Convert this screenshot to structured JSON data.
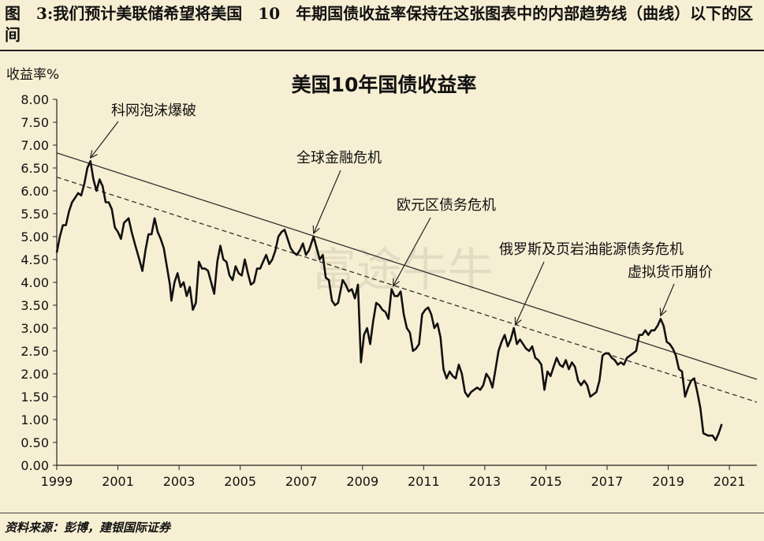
{
  "caption": "图　3:我们预计美联储希望将美国　10　年期国债收益率保持在这张图表中的内部趋势线（曲线）以下的区间",
  "source": "资料来源：彭博，建银国际证券",
  "watermark": "富途牛牛",
  "colors": {
    "background": "#f7efd3",
    "line": "#111111",
    "trend": "#333333"
  },
  "chart_data": {
    "type": "line",
    "title": "美国10年国债收益率",
    "ylabel": "收益率%",
    "xlabel": "",
    "ylim": [
      0,
      8
    ],
    "xlim": [
      1999,
      2021.9
    ],
    "y_ticks": [
      "0.00",
      "0.50",
      "1.00",
      "1.50",
      "2.00",
      "2.50",
      "3.00",
      "3.50",
      "4.00",
      "4.50",
      "5.00",
      "5.50",
      "6.00",
      "6.50",
      "7.00",
      "7.50",
      "8.00"
    ],
    "x_ticks": [
      "1999",
      "2001",
      "2003",
      "2005",
      "2007",
      "2009",
      "2011",
      "2013",
      "2015",
      "2017",
      "2019",
      "2021"
    ],
    "grid": false,
    "series": [
      {
        "style": "solid",
        "points": [
          [
            1999.0,
            4.65
          ],
          [
            1999.1,
            5.0
          ],
          [
            1999.2,
            5.25
          ],
          [
            1999.3,
            5.25
          ],
          [
            1999.4,
            5.55
          ],
          [
            1999.5,
            5.75
          ],
          [
            1999.6,
            5.85
          ],
          [
            1999.7,
            5.95
          ],
          [
            1999.8,
            5.9
          ],
          [
            1999.9,
            6.15
          ],
          [
            2000.0,
            6.5
          ],
          [
            2000.1,
            6.65
          ],
          [
            2000.2,
            6.25
          ],
          [
            2000.3,
            6.0
          ],
          [
            2000.4,
            6.25
          ],
          [
            2000.5,
            6.1
          ],
          [
            2000.6,
            5.75
          ],
          [
            2000.7,
            5.75
          ],
          [
            2000.8,
            5.6
          ],
          [
            2000.9,
            5.2
          ],
          [
            2001.0,
            5.1
          ],
          [
            2001.1,
            4.95
          ],
          [
            2001.2,
            5.3
          ],
          [
            2001.35,
            5.4
          ],
          [
            2001.45,
            5.1
          ],
          [
            2001.55,
            4.85
          ],
          [
            2001.7,
            4.5
          ],
          [
            2001.8,
            4.25
          ],
          [
            2001.9,
            4.7
          ],
          [
            2002.0,
            5.05
          ],
          [
            2002.1,
            5.05
          ],
          [
            2002.2,
            5.4
          ],
          [
            2002.3,
            5.1
          ],
          [
            2002.4,
            4.95
          ],
          [
            2002.5,
            4.75
          ],
          [
            2002.6,
            4.35
          ],
          [
            2002.7,
            3.95
          ],
          [
            2002.75,
            3.6
          ],
          [
            2002.85,
            4.0
          ],
          [
            2002.95,
            4.2
          ],
          [
            2003.05,
            3.9
          ],
          [
            2003.15,
            4.0
          ],
          [
            2003.25,
            3.7
          ],
          [
            2003.35,
            3.9
          ],
          [
            2003.45,
            3.4
          ],
          [
            2003.55,
            3.55
          ],
          [
            2003.65,
            4.45
          ],
          [
            2003.75,
            4.3
          ],
          [
            2003.85,
            4.3
          ],
          [
            2003.95,
            4.25
          ],
          [
            2004.05,
            4.0
          ],
          [
            2004.15,
            3.75
          ],
          [
            2004.25,
            4.45
          ],
          [
            2004.35,
            4.8
          ],
          [
            2004.45,
            4.5
          ],
          [
            2004.55,
            4.45
          ],
          [
            2004.65,
            4.15
          ],
          [
            2004.75,
            4.05
          ],
          [
            2004.85,
            4.35
          ],
          [
            2004.95,
            4.2
          ],
          [
            2005.05,
            4.15
          ],
          [
            2005.15,
            4.5
          ],
          [
            2005.25,
            4.2
          ],
          [
            2005.35,
            3.95
          ],
          [
            2005.45,
            4.0
          ],
          [
            2005.55,
            4.3
          ],
          [
            2005.65,
            4.3
          ],
          [
            2005.75,
            4.45
          ],
          [
            2005.85,
            4.6
          ],
          [
            2005.95,
            4.4
          ],
          [
            2006.05,
            4.5
          ],
          [
            2006.15,
            4.7
          ],
          [
            2006.25,
            5.0
          ],
          [
            2006.35,
            5.1
          ],
          [
            2006.45,
            5.15
          ],
          [
            2006.55,
            4.95
          ],
          [
            2006.65,
            4.75
          ],
          [
            2006.75,
            4.65
          ],
          [
            2006.85,
            4.6
          ],
          [
            2006.95,
            4.7
          ],
          [
            2007.05,
            4.85
          ],
          [
            2007.15,
            4.6
          ],
          [
            2007.25,
            4.7
          ],
          [
            2007.4,
            5.0
          ],
          [
            2007.5,
            4.75
          ],
          [
            2007.6,
            4.5
          ],
          [
            2007.7,
            4.6
          ],
          [
            2007.8,
            4.1
          ],
          [
            2007.9,
            4.05
          ],
          [
            2008.0,
            3.6
          ],
          [
            2008.1,
            3.5
          ],
          [
            2008.2,
            3.55
          ],
          [
            2008.35,
            4.05
          ],
          [
            2008.45,
            3.95
          ],
          [
            2008.55,
            3.8
          ],
          [
            2008.65,
            3.85
          ],
          [
            2008.75,
            3.65
          ],
          [
            2008.85,
            3.95
          ],
          [
            2008.95,
            2.25
          ],
          [
            2009.05,
            2.85
          ],
          [
            2009.15,
            3.0
          ],
          [
            2009.25,
            2.65
          ],
          [
            2009.35,
            3.15
          ],
          [
            2009.45,
            3.55
          ],
          [
            2009.55,
            3.5
          ],
          [
            2009.65,
            3.4
          ],
          [
            2009.75,
            3.35
          ],
          [
            2009.85,
            3.2
          ],
          [
            2009.95,
            3.85
          ],
          [
            2010.05,
            3.7
          ],
          [
            2010.15,
            3.7
          ],
          [
            2010.25,
            3.8
          ],
          [
            2010.35,
            3.3
          ],
          [
            2010.45,
            3.0
          ],
          [
            2010.55,
            2.9
          ],
          [
            2010.65,
            2.5
          ],
          [
            2010.75,
            2.55
          ],
          [
            2010.85,
            2.65
          ],
          [
            2010.95,
            3.3
          ],
          [
            2011.05,
            3.4
          ],
          [
            2011.15,
            3.45
          ],
          [
            2011.25,
            3.3
          ],
          [
            2011.35,
            3.0
          ],
          [
            2011.45,
            3.1
          ],
          [
            2011.55,
            2.8
          ],
          [
            2011.65,
            2.1
          ],
          [
            2011.75,
            1.9
          ],
          [
            2011.85,
            2.05
          ],
          [
            2011.95,
            1.95
          ],
          [
            2012.05,
            1.9
          ],
          [
            2012.15,
            2.2
          ],
          [
            2012.25,
            2.0
          ],
          [
            2012.35,
            1.6
          ],
          [
            2012.45,
            1.5
          ],
          [
            2012.55,
            1.6
          ],
          [
            2012.65,
            1.65
          ],
          [
            2012.75,
            1.7
          ],
          [
            2012.85,
            1.65
          ],
          [
            2012.95,
            1.75
          ],
          [
            2013.05,
            2.0
          ],
          [
            2013.15,
            1.9
          ],
          [
            2013.25,
            1.7
          ],
          [
            2013.35,
            2.1
          ],
          [
            2013.45,
            2.5
          ],
          [
            2013.55,
            2.7
          ],
          [
            2013.65,
            2.85
          ],
          [
            2013.75,
            2.6
          ],
          [
            2013.85,
            2.75
          ],
          [
            2013.95,
            3.0
          ],
          [
            2014.05,
            2.65
          ],
          [
            2014.15,
            2.75
          ],
          [
            2014.25,
            2.65
          ],
          [
            2014.35,
            2.55
          ],
          [
            2014.45,
            2.5
          ],
          [
            2014.55,
            2.6
          ],
          [
            2014.65,
            2.35
          ],
          [
            2014.75,
            2.3
          ],
          [
            2014.85,
            2.2
          ],
          [
            2014.95,
            1.65
          ],
          [
            2015.05,
            2.05
          ],
          [
            2015.15,
            1.95
          ],
          [
            2015.25,
            2.15
          ],
          [
            2015.35,
            2.35
          ],
          [
            2015.45,
            2.2
          ],
          [
            2015.55,
            2.15
          ],
          [
            2015.65,
            2.3
          ],
          [
            2015.75,
            2.1
          ],
          [
            2015.85,
            2.25
          ],
          [
            2015.95,
            2.15
          ],
          [
            2016.05,
            1.85
          ],
          [
            2016.15,
            1.75
          ],
          [
            2016.25,
            1.85
          ],
          [
            2016.35,
            1.75
          ],
          [
            2016.45,
            1.5
          ],
          [
            2016.55,
            1.55
          ],
          [
            2016.65,
            1.6
          ],
          [
            2016.75,
            1.85
          ],
          [
            2016.85,
            2.4
          ],
          [
            2016.95,
            2.45
          ],
          [
            2017.05,
            2.45
          ],
          [
            2017.15,
            2.35
          ],
          [
            2017.25,
            2.3
          ],
          [
            2017.35,
            2.2
          ],
          [
            2017.45,
            2.25
          ],
          [
            2017.55,
            2.2
          ],
          [
            2017.65,
            2.35
          ],
          [
            2017.75,
            2.4
          ],
          [
            2017.85,
            2.45
          ],
          [
            2017.95,
            2.5
          ],
          [
            2018.05,
            2.85
          ],
          [
            2018.15,
            2.85
          ],
          [
            2018.25,
            2.95
          ],
          [
            2018.35,
            2.85
          ],
          [
            2018.45,
            2.95
          ],
          [
            2018.55,
            2.95
          ],
          [
            2018.65,
            3.05
          ],
          [
            2018.75,
            3.2
          ],
          [
            2018.85,
            3.05
          ],
          [
            2018.95,
            2.7
          ],
          [
            2019.05,
            2.65
          ],
          [
            2019.15,
            2.55
          ],
          [
            2019.25,
            2.4
          ],
          [
            2019.35,
            2.1
          ],
          [
            2019.45,
            2.05
          ],
          [
            2019.55,
            1.5
          ],
          [
            2019.65,
            1.7
          ],
          [
            2019.75,
            1.85
          ],
          [
            2019.85,
            1.9
          ],
          [
            2019.95,
            1.6
          ],
          [
            2020.05,
            1.25
          ],
          [
            2020.15,
            0.7
          ],
          [
            2020.3,
            0.65
          ],
          [
            2020.45,
            0.65
          ],
          [
            2020.55,
            0.55
          ],
          [
            2020.65,
            0.7
          ],
          [
            2020.75,
            0.9
          ]
        ]
      }
    ],
    "trendlines": [
      {
        "style": "solid",
        "from": [
          1999.0,
          6.83
        ],
        "to": [
          2021.9,
          1.88
        ]
      },
      {
        "style": "dashed",
        "from": [
          1999.0,
          6.3
        ],
        "to": [
          2021.9,
          1.38
        ]
      }
    ],
    "annotations": [
      {
        "text": "科网泡沫爆破",
        "at": [
          2000.1,
          6.65
        ]
      },
      {
        "text": "全球金融危机",
        "at": [
          2007.4,
          5.0
        ]
      },
      {
        "text": "欧元区债务危机",
        "at": [
          2010.0,
          3.85
        ]
      },
      {
        "text": "俄罗斯及页岩油能源债务危机",
        "at": [
          2014.0,
          3.0
        ]
      },
      {
        "text": "虚拟货币崩价",
        "at": [
          2018.75,
          3.2
        ]
      }
    ]
  }
}
